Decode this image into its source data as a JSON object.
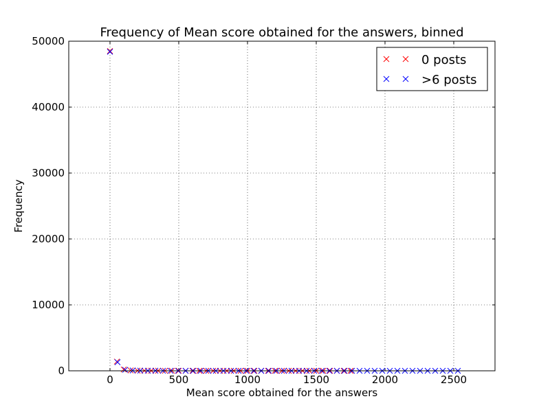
{
  "chart_data": {
    "type": "scatter",
    "title": "Frequency of Mean score obtained for the answers, binned",
    "xlabel": "Mean score obtained for the answers",
    "ylabel": "Frequency",
    "xlim": [
      -300,
      2800
    ],
    "ylim": [
      0,
      50000
    ],
    "xticks": [
      0,
      500,
      1000,
      1500,
      2000,
      2500
    ],
    "yticks": [
      0,
      10000,
      20000,
      30000,
      40000,
      50000
    ],
    "grid": true,
    "legend_position": "top-right",
    "marker": "x",
    "series": [
      {
        "name": "0 posts",
        "color": "#ff0000",
        "x": [
          0,
          50,
          100,
          150,
          200,
          250,
          300,
          350,
          400,
          450,
          500,
          550,
          600,
          650,
          700,
          750,
          800,
          850,
          900,
          950,
          1000,
          1050,
          1100,
          1150,
          1200,
          1250,
          1300,
          1350,
          1400,
          1450,
          1500,
          1550,
          1600,
          1650,
          1700,
          1750
        ],
        "y": [
          48500,
          1400,
          200,
          60,
          30,
          20,
          15,
          10,
          8,
          6,
          5,
          4,
          3,
          3,
          2,
          2,
          2,
          1,
          1,
          1,
          1,
          1,
          1,
          1,
          1,
          1,
          1,
          1,
          1,
          1,
          1,
          1,
          1,
          1,
          1,
          1
        ]
      },
      {
        "name": ">6 posts",
        "color": "#0000ff",
        "x": [
          0,
          55,
          110,
          165,
          220,
          275,
          330,
          385,
          440,
          495,
          550,
          605,
          660,
          715,
          770,
          825,
          880,
          935,
          990,
          1045,
          1100,
          1155,
          1210,
          1265,
          1320,
          1375,
          1430,
          1485,
          1540,
          1595,
          1650,
          1705,
          1760,
          1815,
          1870,
          1925,
          1980,
          2035,
          2090,
          2145,
          2200,
          2255,
          2310,
          2365,
          2420,
          2475,
          2530
        ],
        "y": [
          48400,
          1300,
          150,
          50,
          25,
          15,
          10,
          8,
          6,
          5,
          4,
          3,
          3,
          2,
          2,
          2,
          1,
          1,
          1,
          1,
          1,
          1,
          1,
          1,
          1,
          1,
          1,
          1,
          1,
          1,
          1,
          1,
          1,
          1,
          1,
          1,
          1,
          1,
          1,
          1,
          1,
          1,
          1,
          1,
          1,
          1,
          1
        ]
      }
    ]
  }
}
